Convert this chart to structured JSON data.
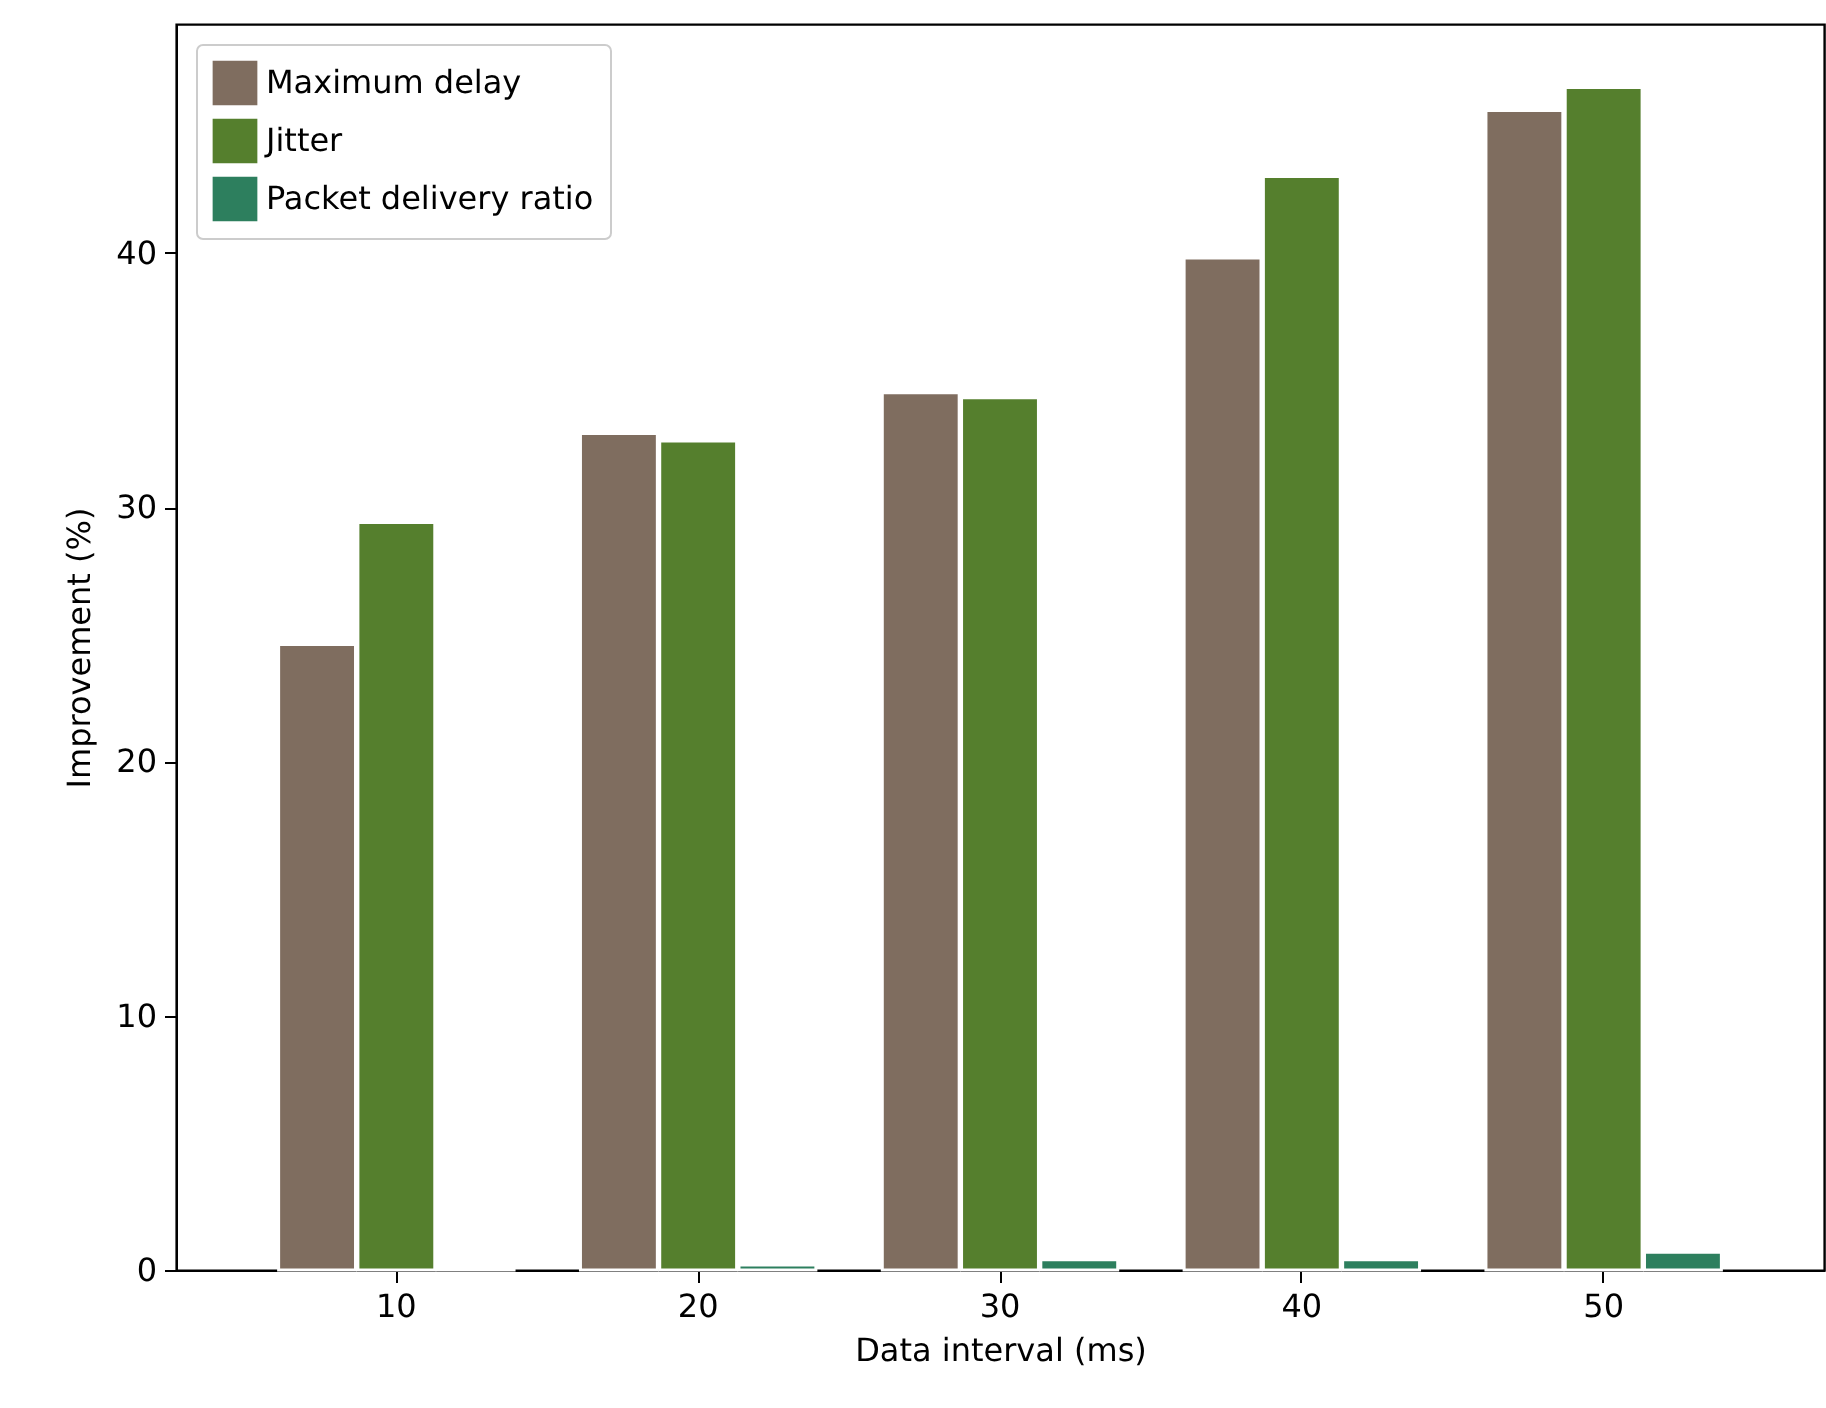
{
  "chart_data": {
    "type": "bar",
    "xlabel": "Data interval (ms)",
    "ylabel": "Improvement (%)",
    "categories": [
      "10",
      "20",
      "30",
      "40",
      "50"
    ],
    "series": [
      {
        "name": "Maximum delay",
        "color": "#7f6d5f",
        "values": [
          24.6,
          32.9,
          34.5,
          39.8,
          45.6
        ]
      },
      {
        "name": "Jitter",
        "color": "#557f2d",
        "values": [
          29.4,
          32.6,
          34.3,
          43.0,
          46.5
        ]
      },
      {
        "name": "Packet delivery ratio",
        "color": "#2d7f5e",
        "values": [
          0.1,
          0.2,
          0.4,
          0.4,
          0.7
        ]
      }
    ],
    "ylim": [
      0,
      49
    ],
    "yticks": [
      0,
      10,
      20,
      30,
      40
    ],
    "grid": false,
    "legend": "top left"
  }
}
